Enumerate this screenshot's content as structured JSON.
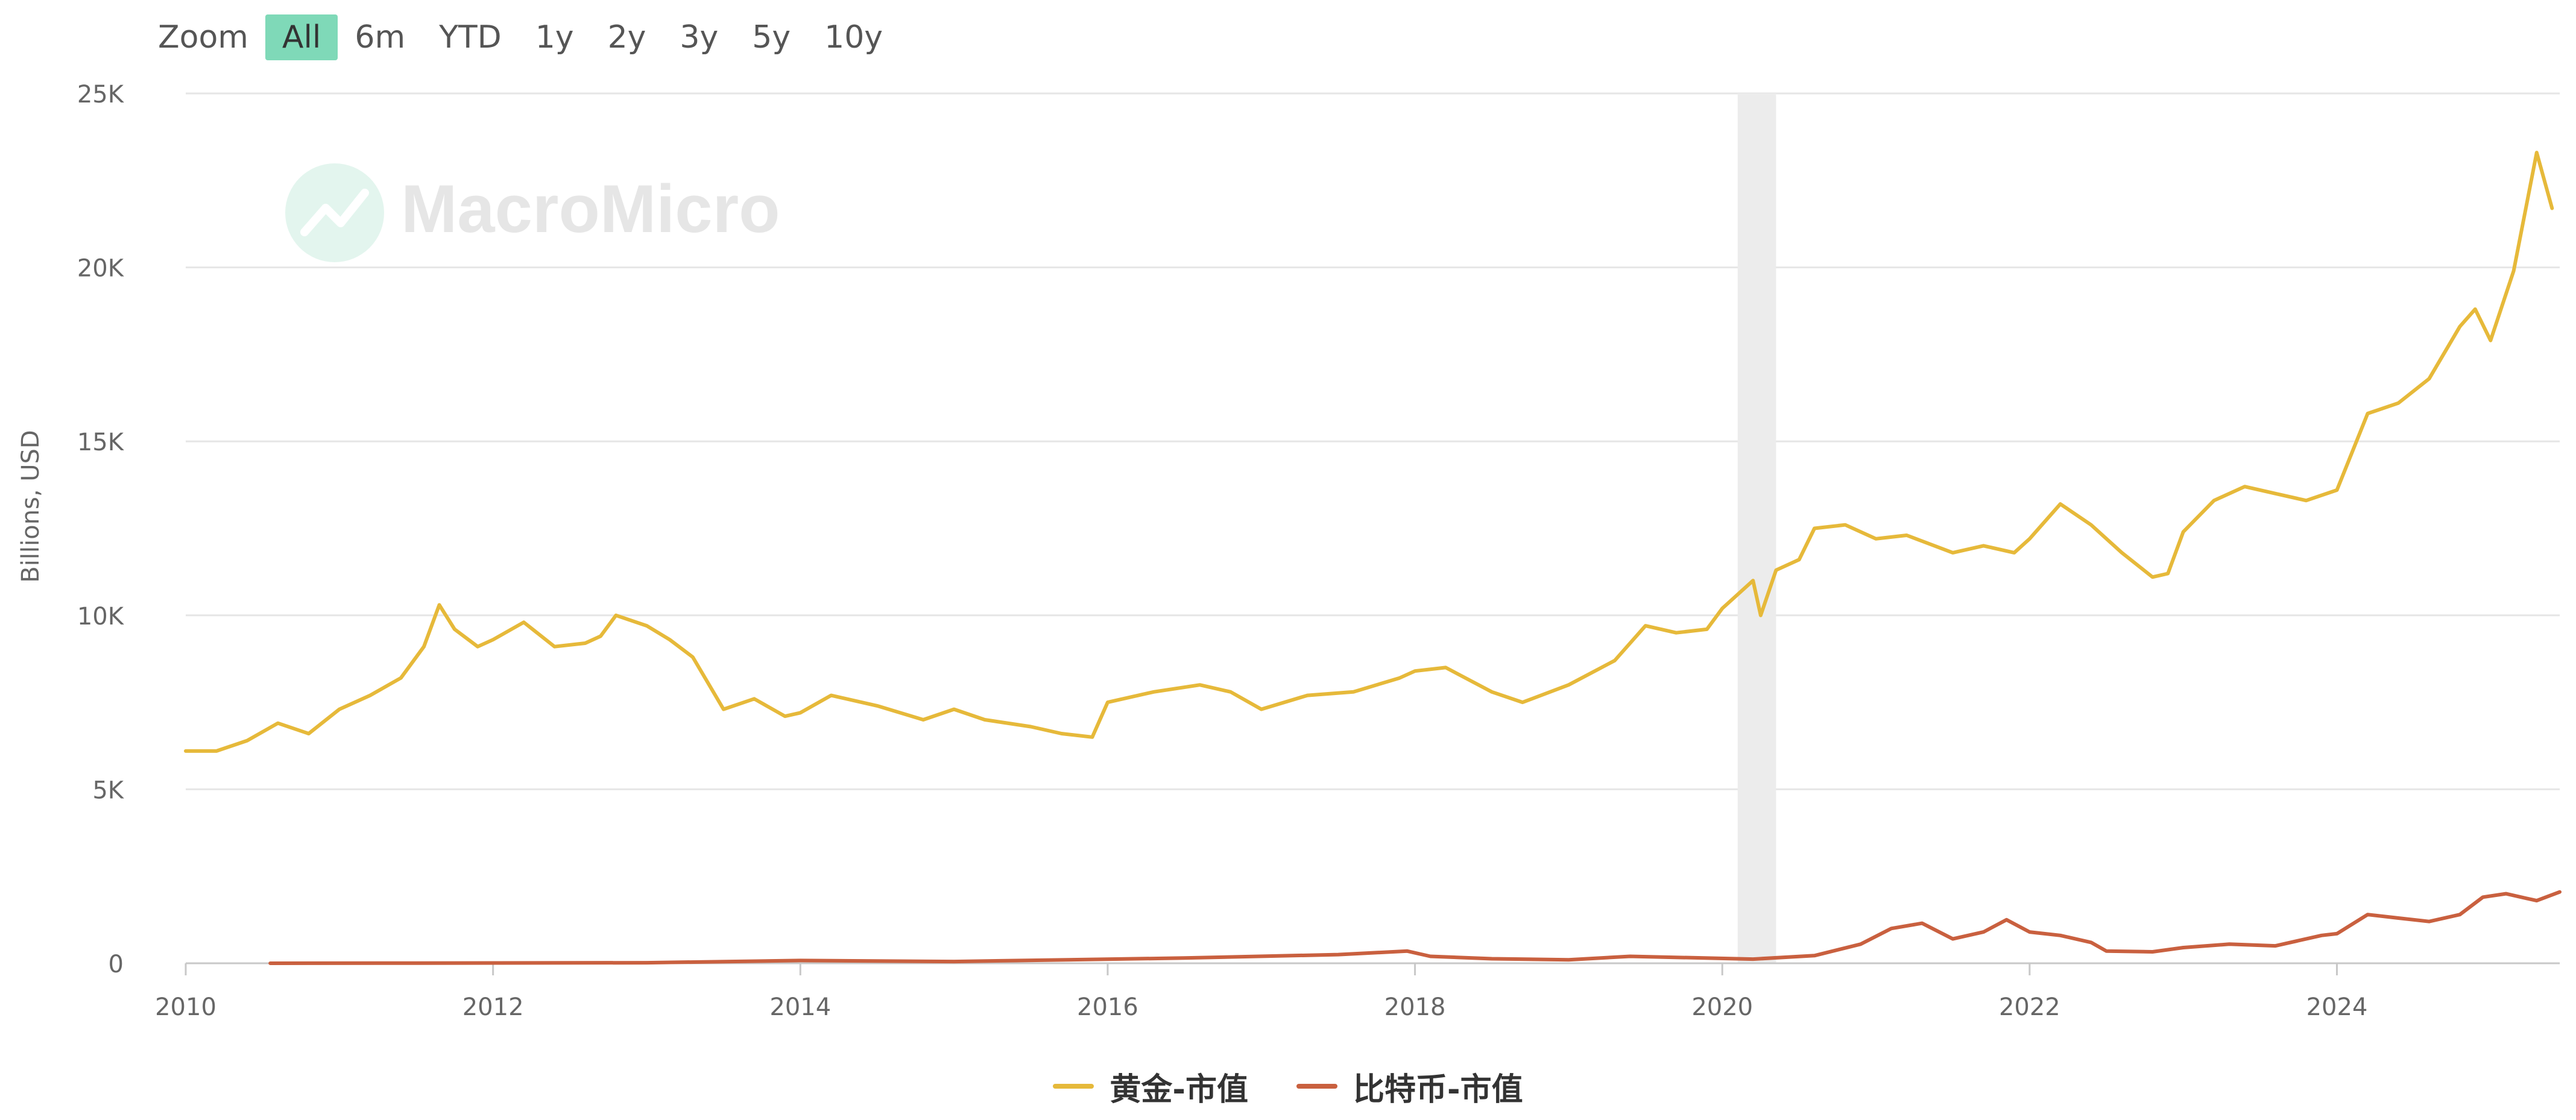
{
  "zoom": {
    "label": "Zoom",
    "buttons": [
      "All",
      "6m",
      "YTD",
      "1y",
      "2y",
      "3y",
      "5y",
      "10y"
    ],
    "active": "All"
  },
  "watermark": "MacroMicro",
  "chart_data": {
    "type": "line",
    "title": "",
    "xlabel": "",
    "ylabel": "Billions, USD",
    "xlim": [
      2010.0,
      2025.45
    ],
    "ylim": [
      0,
      25000
    ],
    "yticks": [
      0,
      5000,
      10000,
      15000,
      20000,
      25000
    ],
    "ytick_labels": [
      "0",
      "5K",
      "10K",
      "15K",
      "20K",
      "25K"
    ],
    "xticks": [
      2010,
      2012,
      2014,
      2016,
      2018,
      2020,
      2022,
      2024
    ],
    "xtick_labels": [
      "2010",
      "2012",
      "2014",
      "2016",
      "2018",
      "2020",
      "2022",
      "2024"
    ],
    "grid": true,
    "shaded_band": {
      "from": 2020.1,
      "to": 2020.35
    },
    "legend_position": "bottom-center",
    "series": [
      {
        "name": "黄金-市值",
        "color": "#e6b93a",
        "x": [
          2010.0,
          2010.2,
          2010.4,
          2010.6,
          2010.8,
          2011.0,
          2011.2,
          2011.4,
          2011.55,
          2011.65,
          2011.75,
          2011.9,
          2012.0,
          2012.2,
          2012.4,
          2012.6,
          2012.7,
          2012.8,
          2013.0,
          2013.15,
          2013.3,
          2013.5,
          2013.7,
          2013.9,
          2014.0,
          2014.2,
          2014.5,
          2014.8,
          2015.0,
          2015.2,
          2015.5,
          2015.7,
          2015.9,
          2016.0,
          2016.3,
          2016.6,
          2016.8,
          2017.0,
          2017.3,
          2017.6,
          2017.9,
          2018.0,
          2018.2,
          2018.5,
          2018.7,
          2019.0,
          2019.3,
          2019.5,
          2019.7,
          2019.9,
          2020.0,
          2020.2,
          2020.25,
          2020.35,
          2020.5,
          2020.6,
          2020.8,
          2021.0,
          2021.2,
          2021.5,
          2021.7,
          2021.9,
          2022.0,
          2022.2,
          2022.4,
          2022.6,
          2022.8,
          2022.9,
          2023.0,
          2023.2,
          2023.4,
          2023.6,
          2023.8,
          2024.0,
          2024.2,
          2024.4,
          2024.6,
          2024.8,
          2024.9,
          2025.0,
          2025.15,
          2025.3,
          2025.4
        ],
        "values": [
          6100,
          6100,
          6400,
          6900,
          6600,
          7300,
          7700,
          8200,
          9100,
          10300,
          9600,
          9100,
          9300,
          9800,
          9100,
          9200,
          9400,
          10000,
          9700,
          9300,
          8800,
          7300,
          7600,
          7100,
          7200,
          7700,
          7400,
          7000,
          7300,
          7000,
          6800,
          6600,
          6500,
          7500,
          7800,
          8000,
          7800,
          7300,
          7700,
          7800,
          8200,
          8400,
          8500,
          7800,
          7500,
          8000,
          8700,
          9700,
          9500,
          9600,
          10200,
          11000,
          10000,
          11300,
          11600,
          12500,
          12600,
          12200,
          12300,
          11800,
          12000,
          11800,
          12200,
          13200,
          12600,
          11800,
          11100,
          11200,
          12400,
          13300,
          13700,
          13500,
          13300,
          13600,
          15800,
          16100,
          16800,
          18300,
          18800,
          17900,
          19900,
          23300,
          21700
        ]
      },
      {
        "name": "比特币-市值",
        "color": "#c9603f",
        "x": [
          2010.55,
          2011.5,
          2013.0,
          2014.0,
          2015.0,
          2016.5,
          2017.5,
          2017.95,
          2018.1,
          2018.5,
          2019.0,
          2019.4,
          2019.8,
          2020.2,
          2020.6,
          2020.9,
          2021.1,
          2021.3,
          2021.5,
          2021.7,
          2021.85,
          2022.0,
          2022.2,
          2022.4,
          2022.5,
          2022.8,
          2023.0,
          2023.3,
          2023.6,
          2023.9,
          2024.0,
          2024.2,
          2024.4,
          2024.6,
          2024.8,
          2024.95,
          2025.1,
          2025.3,
          2025.45
        ],
        "values": [
          0,
          5,
          15,
          80,
          50,
          150,
          250,
          350,
          200,
          130,
          100,
          200,
          160,
          120,
          220,
          550,
          1000,
          1150,
          700,
          900,
          1250,
          900,
          800,
          600,
          350,
          330,
          450,
          550,
          500,
          800,
          850,
          1400,
          1300,
          1200,
          1400,
          1900,
          2000,
          1800,
          2050
        ]
      }
    ]
  }
}
